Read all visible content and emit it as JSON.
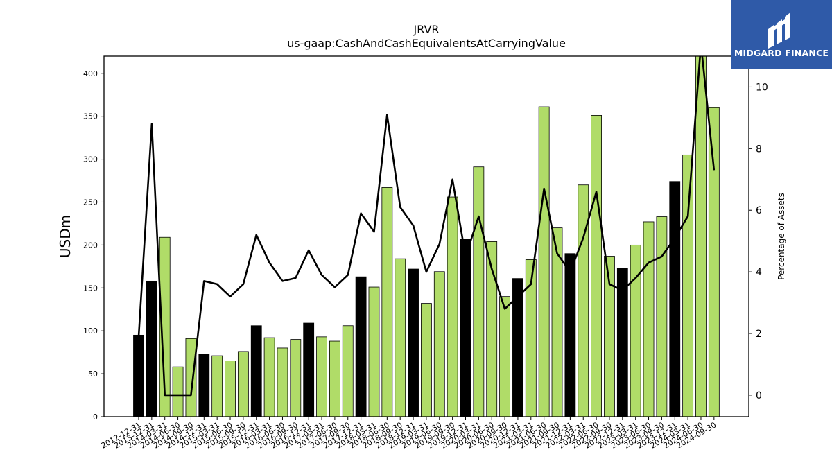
{
  "logo": {
    "text": "MIDGARD FINANCE",
    "color": "#2f5aa8"
  },
  "chart_data": {
    "type": "bar",
    "title": "JRVR",
    "subtitle": "us-gaap:CashAndCashEquivalentsAtCarryingValue",
    "ylabel": "USDm",
    "y2label": "Percentage of Assets",
    "ylim": [
      0,
      420
    ],
    "y2lim": [
      -0.7,
      11
    ],
    "yticks": [
      0,
      50,
      100,
      150,
      200,
      250,
      300,
      350,
      400
    ],
    "y2ticks": [
      0,
      2,
      4,
      6,
      8,
      10
    ],
    "colors": {
      "annual": "#000000",
      "quarterly": "#b0dc68",
      "line": "#000000"
    },
    "categories": [
      "2012-12-31",
      "2013-12-31",
      "2014-03-31",
      "2014-06-30",
      "2014-09-30",
      "2014-12-31",
      "2015-03-31",
      "2015-06-30",
      "2015-09-30",
      "2015-12-31",
      "2016-03-31",
      "2016-06-30",
      "2016-09-30",
      "2016-12-31",
      "2017-03-31",
      "2017-06-30",
      "2017-09-30",
      "2017-12-31",
      "2018-03-31",
      "2018-06-30",
      "2018-09-30",
      "2018-12-31",
      "2019-03-31",
      "2019-06-30",
      "2019-09-30",
      "2019-12-31",
      "2020-03-31",
      "2020-06-30",
      "2020-09-30",
      "2020-12-31",
      "2021-03-31",
      "2021-06-30",
      "2021-09-30",
      "2021-12-31",
      "2022-03-31",
      "2022-06-30",
      "2022-09-30",
      "2022-12-31",
      "2023-03-31",
      "2023-06-30",
      "2023-09-30",
      "2023-12-31",
      "2024-03-31",
      "2024-06-30",
      "2024-09-30"
    ],
    "annual": [
      true,
      true,
      false,
      false,
      false,
      true,
      false,
      false,
      false,
      true,
      false,
      false,
      false,
      true,
      false,
      false,
      false,
      true,
      false,
      false,
      false,
      true,
      false,
      false,
      false,
      true,
      false,
      false,
      false,
      true,
      false,
      false,
      false,
      true,
      false,
      false,
      false,
      true,
      false,
      false,
      false,
      true,
      false,
      false,
      false
    ],
    "values": [
      95,
      158,
      209,
      58,
      91,
      73,
      71,
      65,
      76,
      106,
      92,
      80,
      90,
      109,
      93,
      88,
      106,
      163,
      151,
      267,
      184,
      172,
      132,
      169,
      256,
      207,
      291,
      204,
      140,
      161,
      183,
      361,
      220,
      190,
      270,
      351,
      187,
      173,
      200,
      227,
      233,
      274,
      305,
      421,
      360
    ],
    "pct_assets": [
      1.9,
      8.8,
      0.0,
      0.0,
      0.0,
      3.7,
      3.6,
      3.2,
      3.6,
      5.2,
      4.3,
      3.7,
      3.8,
      4.7,
      3.9,
      3.5,
      3.9,
      5.9,
      5.3,
      9.1,
      6.1,
      5.5,
      4.0,
      4.9,
      7.0,
      4.5,
      5.8,
      4.1,
      2.8,
      3.2,
      3.6,
      6.7,
      4.6,
      4.0,
      5.1,
      6.6,
      3.6,
      3.4,
      3.8,
      4.3,
      4.5,
      5.1,
      5.8,
      11.4,
      7.3
    ]
  }
}
